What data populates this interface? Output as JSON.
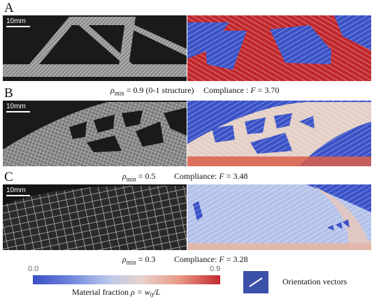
{
  "panels": [
    {
      "letter": "A",
      "scalebar": "10mm",
      "caption_rho": "ρ",
      "caption_sub": "min",
      "caption_value": " = 0.9 (0-1 structure)",
      "compliance": "Compliance : ",
      "compliance_F": "F",
      "compliance_value": " = 3.70"
    },
    {
      "letter": "B",
      "scalebar": "10mm",
      "caption_rho": "ρ",
      "caption_sub": "min",
      "caption_value": " = 0.5",
      "compliance": "Compliance: ",
      "compliance_F": "F",
      "compliance_value": " = 3.48"
    },
    {
      "letter": "C",
      "scalebar": "10mm",
      "caption_rho": "ρ",
      "caption_sub": "min",
      "caption_value": " = 0.3",
      "compliance": "Compliance: ",
      "compliance_F": "F",
      "compliance_value": " = 3.28"
    }
  ],
  "colorbar": {
    "min_label": "0.0",
    "max_label": "0.9",
    "title_text": "Material fraction ",
    "title_math": "ρ = w",
    "title_sub": "0",
    "title_tail": "/L",
    "colors": [
      "#3a4fc4",
      "#b9c6ea",
      "#e6d2cd",
      "#c42a2f"
    ]
  },
  "legend": {
    "label": "Orientation vectors",
    "swatch_color": "#3b50a8"
  }
}
